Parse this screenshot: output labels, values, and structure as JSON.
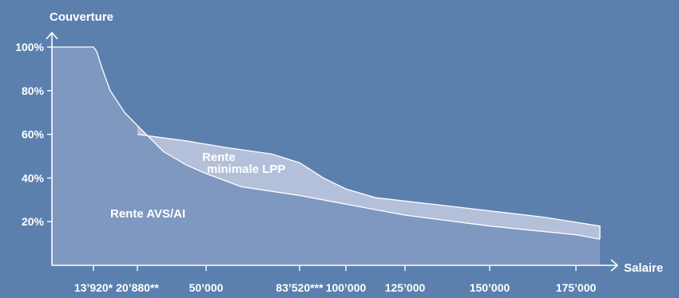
{
  "chart_data": {
    "type": "area",
    "ylabel": "Couverture",
    "xlabel": "Salaire",
    "y_ticks": [
      "20%",
      "40%",
      "60%",
      "80%",
      "100%"
    ],
    "y_tick_values": [
      20,
      40,
      60,
      80,
      100
    ],
    "ylim": [
      0,
      100
    ],
    "x_ticks": [
      "13’920*",
      "20’880**",
      "50’000",
      "83’520***",
      "100’000",
      "125’000",
      "150’000",
      "175’000"
    ],
    "series": [
      {
        "name": "Rente AVS/AI",
        "color": "#7f98c0",
        "points": [
          [
            "13’920*",
            100
          ],
          [
            "14’500",
            98
          ],
          [
            "15’500",
            90
          ],
          [
            "17’000",
            80
          ],
          [
            "19’000",
            70
          ],
          [
            "20’880**",
            64
          ],
          [
            "30’000",
            52
          ],
          [
            "40’000",
            46
          ],
          [
            "50’000",
            42
          ],
          [
            "67’000",
            36
          ],
          [
            "83’520***",
            32
          ],
          [
            "100’000",
            28
          ],
          [
            "125’000",
            23
          ],
          [
            "150’000",
            18
          ],
          [
            "175’000",
            14
          ],
          [
            "185’000",
            12
          ]
        ]
      },
      {
        "name": "Rente minimale LPP",
        "color": "#b4c0da",
        "points": [
          [
            "20’880**",
            60
          ],
          [
            "40’000",
            57
          ],
          [
            "60’000",
            54
          ],
          [
            "75’000",
            51
          ],
          [
            "83’520***",
            47
          ],
          [
            "92’000",
            40
          ],
          [
            "100’000",
            35
          ],
          [
            "115’000",
            31
          ],
          [
            "140’000",
            27
          ],
          [
            "165’000",
            22
          ],
          [
            "185’000",
            18
          ]
        ]
      }
    ],
    "labels": {
      "avs": "Rente AVS/AI",
      "lpp_line1": "Rente",
      "lpp_line2": "minimale LPP"
    }
  }
}
